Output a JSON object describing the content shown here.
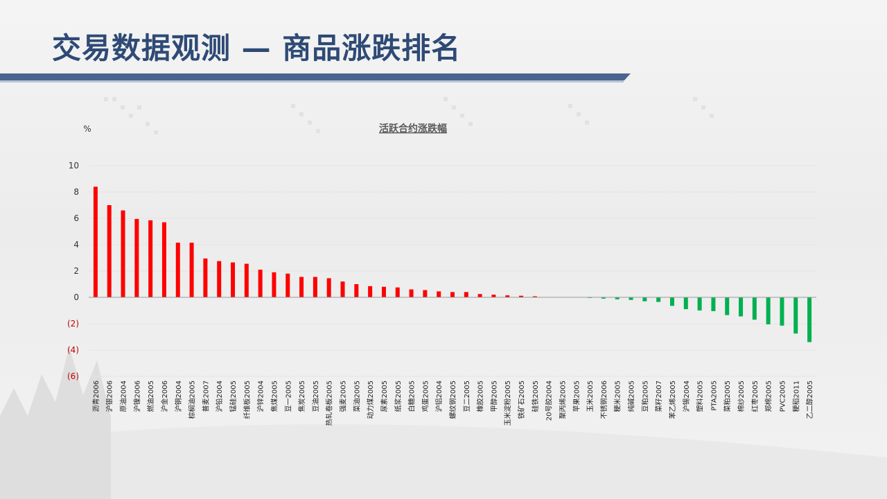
{
  "slide": {
    "title": "交易数据观测 — 商品涨跌排名"
  },
  "colors": {
    "up": "#ff0000",
    "down": "#00b050",
    "title": "#2e4a75",
    "negative_tick": "#c00000"
  },
  "chart_data": {
    "type": "bar",
    "title": "活跃合约涨跌幅",
    "ylabel": "%",
    "ylim": [
      -6,
      10
    ],
    "yticks": [
      10,
      8,
      6,
      4,
      2,
      0,
      -2,
      -4,
      -6
    ],
    "ytick_labels": [
      "10",
      "8",
      "6",
      "4",
      "2",
      "0",
      "(2)",
      "(4)",
      "(6)"
    ],
    "grid": true,
    "categories": [
      "沥青2006",
      "沪银2006",
      "原油2004",
      "沪镍2006",
      "燃油2005",
      "沪金2006",
      "沪铜2004",
      "棕榈油2005",
      "普麦2007",
      "沪铅2004",
      "锰硅2005",
      "纤维板2005",
      "沪锌2004",
      "焦煤2005",
      "豆一2005",
      "焦炭2005",
      "豆油2005",
      "热轧卷板2005",
      "强麦2005",
      "菜油2005",
      "动力煤2005",
      "尿素2005",
      "纸浆2005",
      "白糖2005",
      "鸡蛋2005",
      "沪铝2004",
      "螺纹钢2005",
      "豆二2005",
      "橡胶2005",
      "甲醇2005",
      "玉米淀粉2005",
      "铁矿石2005",
      "硅铁2005",
      "20号胶2004",
      "聚丙烯2005",
      "苹果2005",
      "玉米2005",
      "不锈钢2006",
      "粳米2005",
      "纯碱2005",
      "豆粕2005",
      "菜籽2007",
      "苯乙烯2005",
      "沪锡2004",
      "塑料2005",
      "PTA2005",
      "菜粕2005",
      "棉纱2005",
      "红枣2005",
      "郑棉2005",
      "PVC2005",
      "粳稻2011",
      "乙二醇2005"
    ],
    "values": [
      8.4,
      7.0,
      6.6,
      5.95,
      5.85,
      5.7,
      4.15,
      4.15,
      2.95,
      2.75,
      2.65,
      2.55,
      2.1,
      1.9,
      1.8,
      1.55,
      1.55,
      1.45,
      1.2,
      1.0,
      0.85,
      0.8,
      0.75,
      0.6,
      0.55,
      0.45,
      0.4,
      0.4,
      0.25,
      0.2,
      0.15,
      0.12,
      0.08,
      0.02,
      0.0,
      0.0,
      -0.05,
      -0.1,
      -0.15,
      -0.2,
      -0.3,
      -0.35,
      -0.65,
      -0.9,
      -1.0,
      -1.05,
      -1.35,
      -1.45,
      -1.7,
      -2.05,
      -2.15,
      -2.75,
      -3.4
    ]
  }
}
